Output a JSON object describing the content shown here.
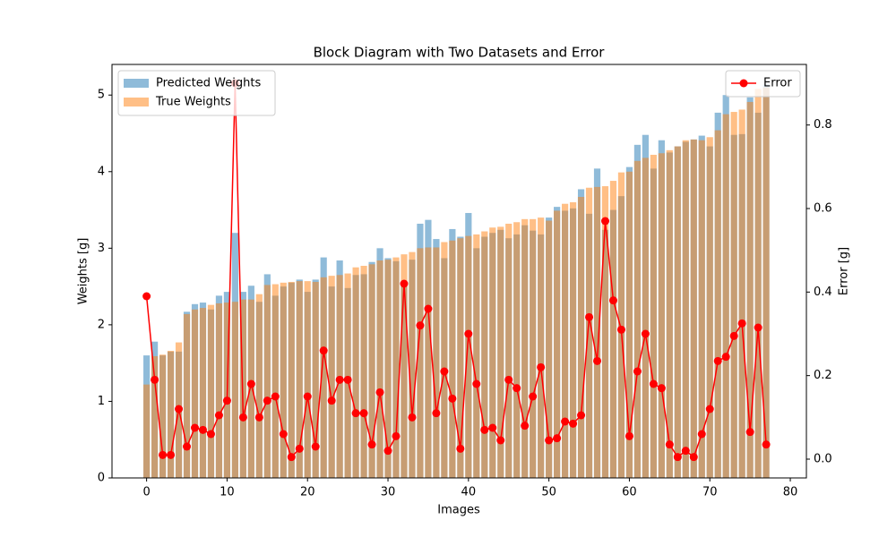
{
  "chart_data": {
    "type": "bar",
    "title": "Block Diagram with Two Datasets and Error",
    "xlabel": "Images",
    "ylabel": "Weights [g]",
    "y2label": "Error [g]",
    "x": [
      0,
      1,
      2,
      3,
      4,
      5,
      6,
      7,
      8,
      9,
      10,
      11,
      12,
      13,
      14,
      15,
      16,
      17,
      18,
      19,
      20,
      21,
      22,
      23,
      24,
      25,
      26,
      27,
      28,
      29,
      30,
      31,
      32,
      33,
      34,
      35,
      36,
      37,
      38,
      39,
      40,
      41,
      42,
      43,
      44,
      45,
      46,
      47,
      48,
      49,
      50,
      51,
      52,
      53,
      54,
      55,
      56,
      57,
      58,
      59,
      60,
      61,
      62,
      63,
      64,
      65,
      66,
      67,
      68,
      69,
      70,
      71,
      72,
      73,
      74,
      75,
      76,
      77
    ],
    "series": [
      {
        "name": "Predicted Weights",
        "type": "bar",
        "color": "#1f77b4",
        "values": [
          1.6,
          1.78,
          1.6,
          1.65,
          1.65,
          2.17,
          2.27,
          2.29,
          2.2,
          2.38,
          2.43,
          3.2,
          2.43,
          2.51,
          2.3,
          2.66,
          2.38,
          2.5,
          2.55,
          2.59,
          2.43,
          2.59,
          2.88,
          2.5,
          2.84,
          2.48,
          2.65,
          2.66,
          2.82,
          3.0,
          2.87,
          2.83,
          2.5,
          2.85,
          3.32,
          3.37,
          3.12,
          2.87,
          3.25,
          3.15,
          3.46,
          3.0,
          3.15,
          3.2,
          3.24,
          3.13,
          3.18,
          3.3,
          3.23,
          3.18,
          3.4,
          3.54,
          3.49,
          3.52,
          3.77,
          3.45,
          4.04,
          3.24,
          3.5,
          3.68,
          4.06,
          4.35,
          4.48,
          4.04,
          4.41,
          4.25,
          4.33,
          4.39,
          4.42,
          4.47,
          4.33,
          4.77,
          5.0,
          4.48,
          4.49,
          4.97,
          4.77,
          5.14
        ]
      },
      {
        "name": "True Weights",
        "type": "bar",
        "color": "#ff7f0e",
        "values": [
          1.22,
          1.59,
          1.61,
          1.66,
          1.77,
          2.14,
          2.2,
          2.22,
          2.26,
          2.28,
          2.29,
          2.3,
          2.33,
          2.33,
          2.4,
          2.52,
          2.53,
          2.55,
          2.56,
          2.57,
          2.57,
          2.56,
          2.62,
          2.64,
          2.65,
          2.67,
          2.75,
          2.77,
          2.79,
          2.84,
          2.85,
          2.88,
          2.92,
          2.95,
          3.0,
          3.01,
          3.01,
          3.08,
          3.1,
          3.13,
          3.16,
          3.18,
          3.22,
          3.27,
          3.28,
          3.32,
          3.34,
          3.38,
          3.38,
          3.4,
          3.36,
          3.49,
          3.58,
          3.6,
          3.67,
          3.79,
          3.8,
          3.81,
          3.88,
          3.99,
          4.0,
          4.14,
          4.18,
          4.22,
          4.24,
          4.28,
          4.33,
          4.41,
          4.42,
          4.41,
          4.45,
          4.54,
          4.75,
          4.78,
          4.81,
          4.91,
          5.08,
          5.1
        ]
      },
      {
        "name": "Error",
        "type": "line",
        "axis": "y2",
        "color": "#ff0000",
        "values": [
          0.39,
          0.19,
          0.01,
          0.01,
          0.12,
          0.03,
          0.075,
          0.07,
          0.06,
          0.105,
          0.14,
          0.9,
          0.1,
          0.18,
          0.1,
          0.14,
          0.15,
          0.06,
          0.005,
          0.025,
          0.15,
          0.03,
          0.26,
          0.14,
          0.19,
          0.19,
          0.11,
          0.11,
          0.035,
          0.16,
          0.02,
          0.055,
          0.42,
          0.1,
          0.32,
          0.36,
          0.11,
          0.21,
          0.145,
          0.025,
          0.3,
          0.18,
          0.07,
          0.075,
          0.045,
          0.19,
          0.17,
          0.08,
          0.15,
          0.22,
          0.045,
          0.05,
          0.09,
          0.085,
          0.105,
          0.34,
          0.235,
          0.57,
          0.38,
          0.31,
          0.055,
          0.21,
          0.3,
          0.18,
          0.17,
          0.035,
          0.005,
          0.02,
          0.005,
          0.06,
          0.12,
          0.235,
          0.245,
          0.295,
          0.325,
          0.065,
          0.315,
          0.035
        ]
      }
    ],
    "xlim": [
      -4.3,
      82
    ],
    "xticks": [
      0,
      10,
      20,
      30,
      40,
      50,
      60,
      70,
      80
    ],
    "ylim": [
      0,
      5.4
    ],
    "yticks": [
      0,
      1,
      2,
      3,
      4,
      5
    ],
    "y2lim": [
      -0.045,
      0.945
    ],
    "y2ticks": [
      {
        "value": 0,
        "label": "0.0"
      },
      0.2,
      0.4,
      0.6,
      0.8
    ],
    "legend": "upper left",
    "y2legend": "upper right"
  }
}
